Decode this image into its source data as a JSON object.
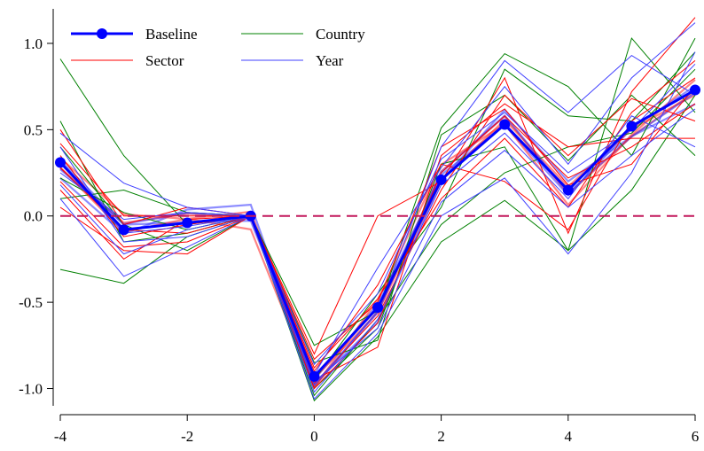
{
  "chart_data": {
    "type": "line",
    "x": [
      -4,
      -3,
      -2,
      -1,
      0,
      1,
      2,
      3,
      4,
      5,
      6
    ],
    "xlim": [
      -4,
      6
    ],
    "ylim": [
      -1.1,
      1.2
    ],
    "xticks": [
      -4,
      -2,
      0,
      2,
      4,
      6
    ],
    "xtick_labels": [
      "-4",
      "-2",
      "0",
      "2",
      "4",
      "6"
    ],
    "yticks": [
      -1.0,
      -0.5,
      0.0,
      0.5,
      1.0
    ],
    "ytick_labels": [
      "-1.0",
      "-0.5",
      "0.0",
      "0.5",
      "1.0"
    ],
    "reference_line": {
      "y": 0,
      "style": "dashed",
      "color": "#c2185b"
    },
    "grid": false,
    "legend_position": "top-left",
    "legend": [
      {
        "label": "Baseline",
        "color": "#0000ff"
      },
      {
        "label": "Country",
        "color": "#008000"
      },
      {
        "label": "Sector",
        "color": "#ff0000"
      },
      {
        "label": "Year",
        "color": "#4040ff"
      }
    ],
    "baseline": {
      "name": "Baseline",
      "color": "#0000ff",
      "values": [
        0.31,
        -0.08,
        -0.04,
        0.0,
        -0.93,
        -0.53,
        0.21,
        0.53,
        0.15,
        0.52,
        0.73
      ]
    },
    "robustness_series": [
      {
        "group": "Country",
        "color": "#008000",
        "values": [
          0.91,
          0.35,
          -0.05,
          0.0,
          -0.75,
          -0.55,
          0.51,
          0.94,
          0.75,
          0.35,
          1.03
        ]
      },
      {
        "group": "Country",
        "color": "#008000",
        "values": [
          -0.31,
          -0.39,
          -0.12,
          0.0,
          -1.07,
          -0.7,
          -0.15,
          0.09,
          -0.2,
          0.15,
          0.7
        ]
      },
      {
        "group": "Country",
        "color": "#008000",
        "values": [
          0.4,
          -0.05,
          -0.2,
          0.0,
          -0.95,
          -0.45,
          0.05,
          0.85,
          0.58,
          0.55,
          0.95
        ]
      },
      {
        "group": "Country",
        "color": "#008000",
        "values": [
          0.1,
          0.15,
          0.02,
          0.0,
          -1.0,
          -0.65,
          0.3,
          0.4,
          -0.2,
          1.03,
          0.6
        ]
      },
      {
        "group": "Country",
        "color": "#008000",
        "values": [
          0.55,
          -0.15,
          -0.1,
          0.0,
          -0.85,
          -0.72,
          0.47,
          0.7,
          0.32,
          0.7,
          0.35
        ]
      },
      {
        "group": "Country",
        "color": "#008000",
        "values": [
          0.22,
          0.02,
          -0.08,
          0.0,
          -1.04,
          -0.6,
          -0.05,
          0.25,
          0.4,
          0.48,
          0.85
        ]
      },
      {
        "group": "Sector",
        "color": "#ff0000",
        "values": [
          0.05,
          -0.2,
          -0.22,
          0.0,
          -0.8,
          0.0,
          0.2,
          0.8,
          -0.1,
          0.72,
          1.15
        ]
      },
      {
        "group": "Sector",
        "color": "#ff0000",
        "values": [
          0.5,
          -0.05,
          0.05,
          0.0,
          -0.95,
          -0.76,
          0.35,
          0.65,
          0.4,
          0.45,
          0.45
        ]
      },
      {
        "group": "Sector",
        "color": "#ff0000",
        "values": [
          0.35,
          -0.12,
          -0.05,
          0.0,
          -0.88,
          -0.48,
          0.1,
          0.45,
          0.05,
          0.6,
          0.9
        ]
      },
      {
        "group": "Sector",
        "color": "#ff0000",
        "values": [
          0.2,
          -0.18,
          -0.15,
          0.0,
          -1.0,
          -0.62,
          0.25,
          0.58,
          0.22,
          0.4,
          0.65
        ]
      },
      {
        "group": "Sector",
        "color": "#ff0000",
        "values": [
          0.42,
          0.0,
          0.0,
          0.0,
          -0.9,
          -0.4,
          0.3,
          0.2,
          -0.08,
          0.55,
          0.8
        ]
      },
      {
        "group": "Sector",
        "color": "#ff0000",
        "values": [
          0.28,
          -0.08,
          -0.1,
          0.0,
          -0.97,
          -0.58,
          0.15,
          0.7,
          0.35,
          0.68,
          0.55
        ]
      },
      {
        "group": "Sector",
        "color": "#ff0000",
        "values": [
          0.15,
          -0.25,
          -0.02,
          0.0,
          -0.83,
          -0.5,
          0.4,
          0.62,
          0.18,
          0.3,
          0.75
        ]
      },
      {
        "group": "Year",
        "color": "#4040ff",
        "values": [
          0.48,
          0.19,
          0.05,
          0.0,
          -0.98,
          -0.55,
          0.4,
          0.9,
          0.6,
          0.93,
          0.7
        ]
      },
      {
        "group": "Year",
        "color": "#4040ff",
        "values": [
          0.1,
          -0.35,
          -0.18,
          0.0,
          -1.06,
          -0.68,
          0.0,
          0.22,
          -0.22,
          0.25,
          0.95
        ]
      },
      {
        "group": "Year",
        "color": "#4040ff",
        "values": [
          0.32,
          -0.1,
          -0.06,
          0.0,
          -0.92,
          -0.3,
          0.28,
          0.75,
          0.3,
          0.8,
          1.12
        ]
      },
      {
        "group": "Year",
        "color": "#4040ff",
        "values": [
          0.25,
          -0.02,
          0.02,
          0.0,
          -1.02,
          -0.6,
          0.18,
          0.48,
          0.1,
          0.58,
          0.4
        ]
      },
      {
        "group": "Year",
        "color": "#4040ff",
        "values": [
          0.4,
          -0.15,
          -0.12,
          0.0,
          -0.86,
          -0.45,
          0.33,
          0.6,
          0.25,
          0.5,
          0.88
        ]
      },
      {
        "group": "Year",
        "color": "#4040ff",
        "values": [
          0.18,
          -0.22,
          -0.08,
          0.0,
          -0.96,
          -0.65,
          0.08,
          0.38,
          0.05,
          0.35,
          0.62
        ]
      }
    ]
  }
}
